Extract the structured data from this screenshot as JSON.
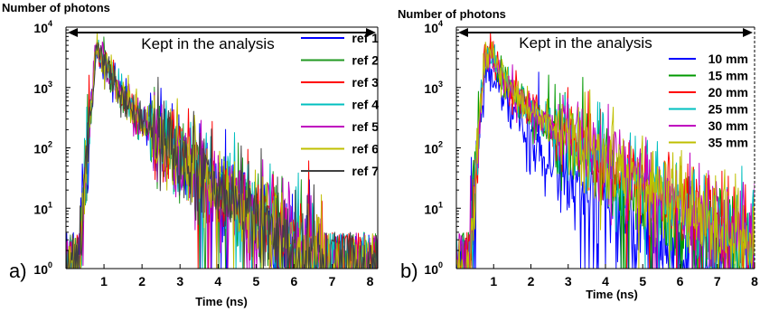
{
  "chart_data": [
    {
      "type": "line",
      "panel_label": "a)",
      "ylabel": "Number of photons",
      "xlabel": "Time (ns)",
      "xlim": [
        0,
        8.2
      ],
      "ylim": [
        1,
        10000
      ],
      "yscale": "log",
      "grid": false,
      "annotation": "Kept in the analysis",
      "annotation_range": [
        0,
        8.2
      ],
      "legend_position": "right",
      "x_ticks": [
        1,
        2,
        3,
        4,
        5,
        6,
        7,
        8
      ],
      "y_ticks": [
        {
          "base": "10",
          "exp": "0"
        },
        {
          "base": "10",
          "exp": "1"
        },
        {
          "base": "10",
          "exp": "2"
        },
        {
          "base": "10",
          "exp": "3"
        },
        {
          "base": "10",
          "exp": "4"
        }
      ],
      "series": [
        {
          "name": "ref 1",
          "color": "#0000ff",
          "peak": 4500,
          "tail": 0,
          "t_end": 8.2
        },
        {
          "name": "ref 2",
          "color": "#229922",
          "peak": 4500,
          "tail": 0,
          "t_end": 8.2
        },
        {
          "name": "ref 3",
          "color": "#ff0000",
          "peak": 4500,
          "tail": 0,
          "t_end": 8.2
        },
        {
          "name": "ref 4",
          "color": "#00bfbf",
          "peak": 4500,
          "tail": 0,
          "t_end": 8.2
        },
        {
          "name": "ref 5",
          "color": "#bf00bf",
          "peak": 4500,
          "tail": 0,
          "t_end": 8.2
        },
        {
          "name": "ref 6",
          "color": "#bfbf00",
          "peak": 4500,
          "tail": 0,
          "t_end": 8.2
        },
        {
          "name": "ref 7",
          "color": "#404040",
          "peak": 4500,
          "tail": 0,
          "t_end": 8.2
        }
      ]
    },
    {
      "type": "line",
      "panel_label": "b)",
      "ylabel": "Number of photons",
      "xlabel": "Time (ns)",
      "xlim": [
        0,
        8.0
      ],
      "ylim": [
        1,
        10000
      ],
      "yscale": "log",
      "grid": false,
      "annotation": "Kept in the analysis",
      "annotation_range": [
        0,
        8.0
      ],
      "legend_position": "right",
      "x_ticks": [
        1,
        2,
        3,
        4,
        5,
        6,
        7,
        8
      ],
      "y_ticks": [
        {
          "base": "10",
          "exp": "0"
        },
        {
          "base": "10",
          "exp": "1"
        },
        {
          "base": "10",
          "exp": "2"
        },
        {
          "base": "10",
          "exp": "3"
        },
        {
          "base": "10",
          "exp": "4"
        }
      ],
      "series": [
        {
          "name": "10 mm",
          "color": "#0000ff",
          "peak": 2300,
          "tail": 0,
          "t_end": 8.0
        },
        {
          "name": "15 mm",
          "color": "#009900",
          "peak": 4700,
          "tail": 0.12,
          "t_end": 8.0
        },
        {
          "name": "20 mm",
          "color": "#ff0000",
          "peak": 4800,
          "tail": 0.2,
          "t_end": 8.0
        },
        {
          "name": "25 mm",
          "color": "#00bfbf",
          "peak": 4800,
          "tail": 0.2,
          "t_end": 8.0
        },
        {
          "name": "30 mm",
          "color": "#bf00bf",
          "peak": 4800,
          "tail": 0.22,
          "t_end": 8.0
        },
        {
          "name": "35 mm",
          "color": "#bfbf00",
          "peak": 4600,
          "tail": 0.22,
          "t_end": 8.0
        }
      ]
    }
  ]
}
